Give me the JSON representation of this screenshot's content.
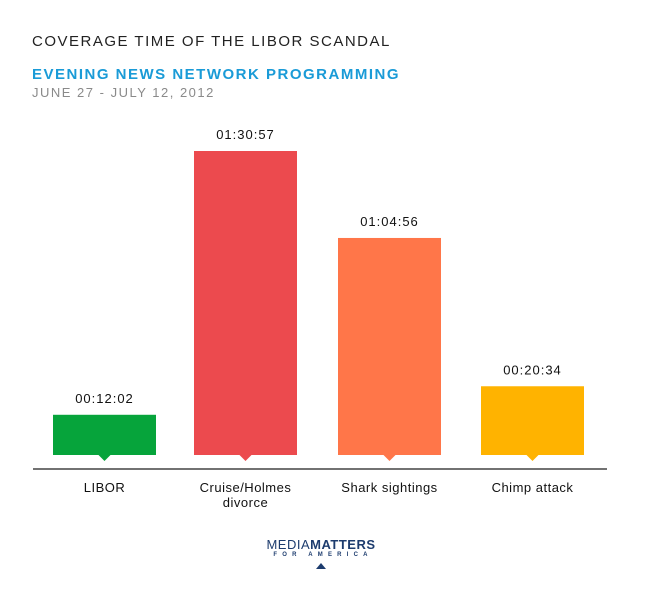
{
  "title": "COVERAGE TIME OF THE LIBOR SCANDAL",
  "subtitle": "EVENING NEWS NETWORK PROGRAMMING",
  "date_range": "JUNE 27 - JULY 12, 2012",
  "logo": {
    "part1": "MEDIA",
    "part2": "MATTERS",
    "sub": "FOR AMERICA"
  },
  "chart_data": {
    "type": "bar",
    "categories": [
      [
        "LIBOR"
      ],
      [
        "Cruise/Holmes",
        "divorce"
      ],
      [
        "Shark sightings"
      ],
      [
        "Chimp attack"
      ]
    ],
    "values": [
      722,
      5457,
      3896,
      1234
    ],
    "value_labels": [
      "00:12:02",
      "01:30:57",
      "01:04:56",
      "00:20:34"
    ],
    "colors": [
      "#06a43b",
      "#ec4a4e",
      "#ff7649",
      "#ffb300"
    ],
    "ylim": [
      0,
      5457
    ],
    "grid": false,
    "legend": "none"
  }
}
